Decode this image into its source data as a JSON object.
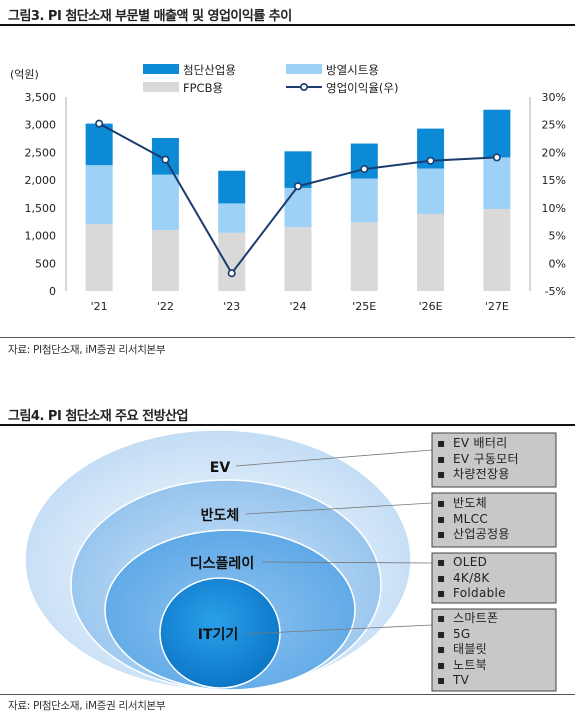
{
  "figure1": {
    "title": "그림3. PI 첨단소재 부문별 매출액 및 영업이익률 추이",
    "source": "자료: PI첨단소재, iM증권 리서치본부"
  },
  "chart_data": {
    "type": "bar",
    "stacked": true,
    "categories": [
      "'21",
      "'22",
      "'23",
      "'24",
      "'25E",
      "'26E",
      "'27E"
    ],
    "y_unit_label": "(억원)",
    "ylim": [
      0,
      3500
    ],
    "y_ticks": [
      "0",
      "500",
      "1,000",
      "1,500",
      "2,000",
      "2,500",
      "3,000",
      "3,500"
    ],
    "y2lim": [
      -5,
      30
    ],
    "y2_ticks": [
      "-5%",
      "0%",
      "5%",
      "10%",
      "15%",
      "20%",
      "25%",
      "30%"
    ],
    "legend_placement": "top",
    "series": [
      {
        "name": "FPCB용",
        "kind": "bar",
        "color": "#d9d9d9",
        "values": [
          1210,
          1100,
          1050,
          1150,
          1240,
          1390,
          1480
        ]
      },
      {
        "name": "방열시트용",
        "kind": "bar",
        "color": "#9dd1f5",
        "values": [
          1060,
          1000,
          530,
          710,
          790,
          820,
          930
        ]
      },
      {
        "name": "첨단산업용",
        "kind": "bar",
        "color": "#0d8ad6",
        "values": [
          750,
          660,
          590,
          660,
          630,
          720,
          860
        ]
      },
      {
        "name": "영업이익율(우)",
        "kind": "line",
        "axis": "right",
        "color": "#1a3c6e",
        "values": [
          25.2,
          18.7,
          -1.8,
          13.9,
          17.0,
          18.5,
          19.1
        ]
      }
    ]
  },
  "figure2": {
    "title": "그림4. PI 첨단소재 주요 전방산업",
    "source": "자료: PI첨단소재, iM증권 리서치본부",
    "levels": [
      {
        "label": "EV",
        "items": [
          "EV 배터리",
          "EV 구동모터",
          "차량전장용"
        ]
      },
      {
        "label": "반도체",
        "items": [
          "반도체",
          "MLCC",
          "산업공정용"
        ]
      },
      {
        "label": "디스플레이",
        "items": [
          "OLED",
          "4K/8K",
          "Foldable"
        ]
      },
      {
        "label": "IT기기",
        "items": [
          "스마트폰",
          "5G",
          "태블릿",
          "노트북",
          "TV"
        ]
      }
    ]
  }
}
